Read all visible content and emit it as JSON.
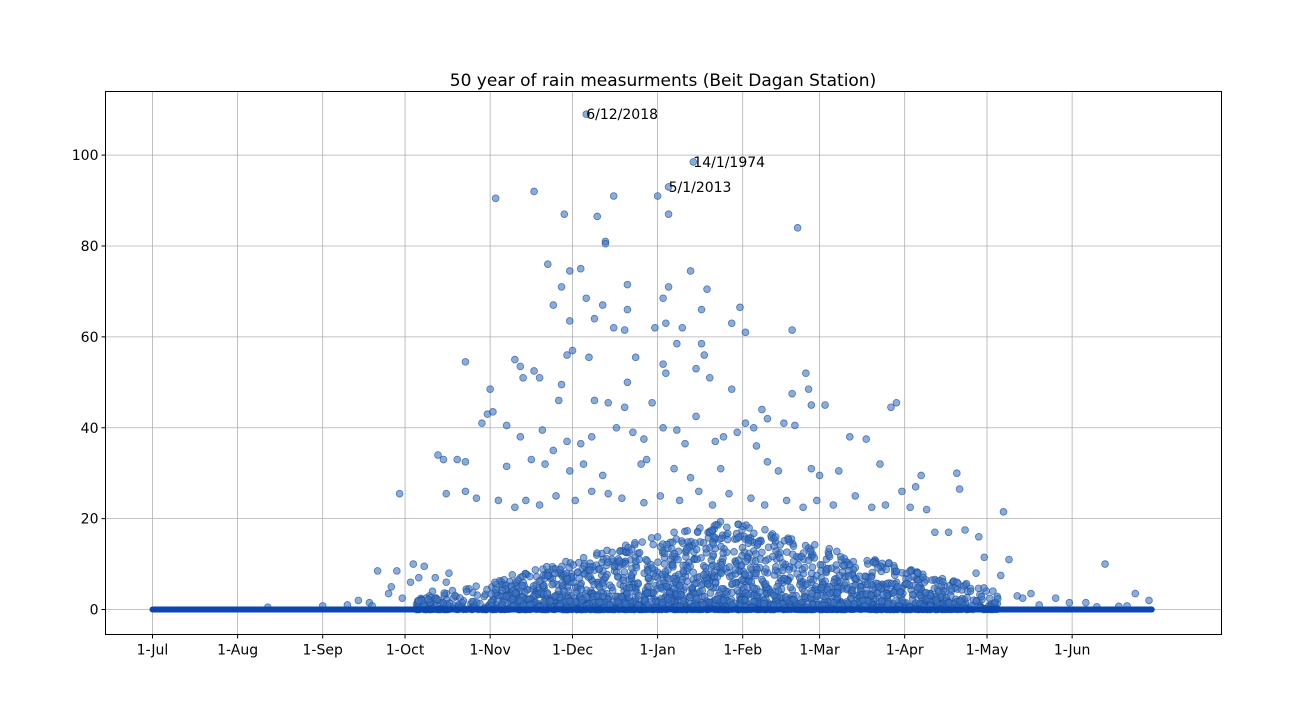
{
  "chart_data": {
    "type": "scatter",
    "title": "50 year of rain measurments (Beit Dagan Station)",
    "xlabel": "",
    "ylabel": "",
    "x_axis_kind": "day of season (Jul–Jun)",
    "x_tick_labels": [
      "1-Jul",
      "1-Aug",
      "1-Sep",
      "1-Oct",
      "1-Nov",
      "1-Dec",
      "1-Jan",
      "1-Feb",
      "1-Mar",
      "1-Apr",
      "1-May",
      "1-Jun"
    ],
    "y_ticks": [
      0,
      20,
      40,
      60,
      80,
      100
    ],
    "ylim": [
      -5.5,
      114
    ],
    "grid": true,
    "marker_color": "#3a75c4",
    "zero_line_color": "#0b46b0",
    "zero_rain_days": {
      "from": "1-Jul",
      "to": "30-Jun",
      "value": 0
    },
    "annotations": [
      {
        "text": "6/12/2018",
        "date": "6-Dec",
        "value": 109
      },
      {
        "text": "14/1/1974",
        "date": "14-Jan",
        "value": 98.5
      },
      {
        "text": "5/1/2013",
        "date": "5-Jan",
        "value": 93
      }
    ],
    "points": [
      [
        "6-Dec",
        109
      ],
      [
        "14-Jan",
        98.5
      ],
      [
        "5-Jan",
        93
      ],
      [
        "3-Nov",
        90.5
      ],
      [
        "17-Nov",
        92
      ],
      [
        "16-Dec",
        91
      ],
      [
        "1-Jan",
        91
      ],
      [
        "28-Nov",
        87
      ],
      [
        "10-Dec",
        86.5
      ],
      [
        "5-Jan",
        87
      ],
      [
        "21-Feb",
        84
      ],
      [
        "13-Dec",
        81
      ],
      [
        "13-Dec",
        80.5
      ],
      [
        "22-Nov",
        76
      ],
      [
        "4-Dec",
        75
      ],
      [
        "30-Nov",
        74.5
      ],
      [
        "13-Jan",
        74.5
      ],
      [
        "27-Nov",
        71
      ],
      [
        "21-Dec",
        71.5
      ],
      [
        "5-Jan",
        71
      ],
      [
        "19-Jan",
        70.5
      ],
      [
        "3-Jan",
        68.5
      ],
      [
        "6-Dec",
        68.5
      ],
      [
        "24-Nov",
        67
      ],
      [
        "12-Dec",
        67
      ],
      [
        "31-Jan",
        66.5
      ],
      [
        "21-Dec",
        66
      ],
      [
        "9-Dec",
        64
      ],
      [
        "30-Nov",
        63.5
      ],
      [
        "4-Jan",
        63
      ],
      [
        "28-Jan",
        63
      ],
      [
        "16-Dec",
        62
      ],
      [
        "31-Dec",
        62
      ],
      [
        "20-Dec",
        61.5
      ],
      [
        "2-Feb",
        61
      ],
      [
        "19-Feb",
        61.5
      ],
      [
        "17-Jan",
        66
      ],
      [
        "10-Jan",
        62
      ],
      [
        "1-Dec",
        57
      ],
      [
        "7-Dec",
        55.5
      ],
      [
        "24-Dec",
        55.5
      ],
      [
        "3-Jan",
        54
      ],
      [
        "17-Jan",
        58.5
      ],
      [
        "15-Jan",
        53
      ],
      [
        "18-Jan",
        56
      ],
      [
        "4-Jan",
        52
      ],
      [
        "8-Jan",
        58.5
      ],
      [
        "29-Nov",
        56
      ],
      [
        "10-Nov",
        55
      ],
      [
        "23-Oct",
        54.5
      ],
      [
        "12-Nov",
        53.5
      ],
      [
        "19-Nov",
        51
      ],
      [
        "17-Nov",
        52.5
      ],
      [
        "21-Dec",
        50
      ],
      [
        "27-Nov",
        49.5
      ],
      [
        "28-Jan",
        48.5
      ],
      [
        "20-Jan",
        51
      ],
      [
        "13-Nov",
        51
      ],
      [
        "8-Feb",
        44
      ],
      [
        "24-Feb",
        52
      ],
      [
        "26-Feb",
        45
      ],
      [
        "3-Mar",
        45
      ],
      [
        "25-Feb",
        48.5
      ],
      [
        "19-Feb",
        47.5
      ],
      [
        "1-Nov",
        48.5
      ],
      [
        "26-Nov",
        46
      ],
      [
        "9-Dec",
        46
      ],
      [
        "14-Dec",
        45.5
      ],
      [
        "20-Dec",
        44.5
      ],
      [
        "30-Dec",
        45.5
      ],
      [
        "15-Jan",
        42.5
      ],
      [
        "25-Jan",
        38
      ],
      [
        "30-Jan",
        39
      ],
      [
        "2-Feb",
        41
      ],
      [
        "5-Feb",
        40
      ],
      [
        "10-Feb",
        42
      ],
      [
        "16-Feb",
        41
      ],
      [
        "29-Mar",
        45.5
      ],
      [
        "27-Mar",
        44.5
      ],
      [
        "31-Oct",
        43
      ],
      [
        "29-Oct",
        41
      ],
      [
        "2-Nov",
        43.5
      ],
      [
        "7-Nov",
        40.5
      ],
      [
        "12-Nov",
        38
      ],
      [
        "20-Nov",
        39.5
      ],
      [
        "24-Nov",
        35
      ],
      [
        "29-Nov",
        37
      ],
      [
        "4-Dec",
        36.5
      ],
      [
        "8-Dec",
        38
      ],
      [
        "17-Dec",
        40
      ],
      [
        "23-Dec",
        39
      ],
      [
        "27-Dec",
        37.5
      ],
      [
        "3-Jan",
        40
      ],
      [
        "8-Jan",
        39.5
      ],
      [
        "11-Jan",
        36.5
      ],
      [
        "22-Jan",
        37
      ],
      [
        "6-Feb",
        36
      ],
      [
        "12-Mar",
        38
      ],
      [
        "18-Mar",
        37.5
      ],
      [
        "20-Feb",
        40.5
      ],
      [
        "13-Oct",
        34
      ],
      [
        "15-Oct",
        33
      ],
      [
        "20-Oct",
        33
      ],
      [
        "23-Oct",
        32.5
      ],
      [
        "7-Nov",
        31.5
      ],
      [
        "16-Nov",
        33
      ],
      [
        "21-Nov",
        32
      ],
      [
        "30-Nov",
        30.5
      ],
      [
        "5-Dec",
        32
      ],
      [
        "12-Dec",
        29.5
      ],
      [
        "26-Dec",
        32
      ],
      [
        "28-Dec",
        33
      ],
      [
        "7-Jan",
        31
      ],
      [
        "13-Jan",
        29
      ],
      [
        "24-Jan",
        31
      ],
      [
        "10-Feb",
        32.5
      ],
      [
        "14-Feb",
        30.5
      ],
      [
        "26-Feb",
        31
      ],
      [
        "1-Mar",
        29.5
      ],
      [
        "8-Mar",
        30.5
      ],
      [
        "23-Mar",
        32
      ],
      [
        "31-Mar",
        26
      ],
      [
        "5-Apr",
        27
      ],
      [
        "7-Apr",
        29.5
      ],
      [
        "20-Apr",
        30
      ],
      [
        "21-Apr",
        26.5
      ],
      [
        "29-Sep",
        25.5
      ],
      [
        "16-Oct",
        25.5
      ],
      [
        "23-Oct",
        26
      ],
      [
        "27-Oct",
        24.5
      ],
      [
        "4-Nov",
        24
      ],
      [
        "10-Nov",
        22.5
      ],
      [
        "14-Nov",
        24
      ],
      [
        "19-Nov",
        23
      ],
      [
        "25-Nov",
        25
      ],
      [
        "2-Dec",
        24
      ],
      [
        "8-Dec",
        26
      ],
      [
        "14-Dec",
        25.5
      ],
      [
        "19-Dec",
        24.5
      ],
      [
        "27-Dec",
        23.5
      ],
      [
        "2-Jan",
        25
      ],
      [
        "9-Jan",
        24
      ],
      [
        "16-Jan",
        26
      ],
      [
        "21-Jan",
        23
      ],
      [
        "27-Jan",
        25.5
      ],
      [
        "4-Feb",
        24.5
      ],
      [
        "9-Feb",
        23
      ],
      [
        "17-Feb",
        24
      ],
      [
        "23-Feb",
        22.5
      ],
      [
        "28-Feb",
        24
      ],
      [
        "6-Mar",
        23
      ],
      [
        "14-Mar",
        25
      ],
      [
        "20-Mar",
        22.5
      ],
      [
        "25-Mar",
        23
      ],
      [
        "3-Apr",
        22.5
      ],
      [
        "9-Apr",
        22
      ],
      [
        "12-Apr",
        17
      ],
      [
        "23-Apr",
        17.5
      ],
      [
        "7-May",
        21.5
      ],
      [
        "28-Apr",
        16
      ],
      [
        "17-Apr",
        17
      ],
      [
        "30-Apr",
        11.5
      ],
      [
        "9-May",
        11
      ],
      [
        "13-Jun",
        10
      ],
      [
        "27-Apr",
        8
      ],
      [
        "6-May",
        7.5
      ],
      [
        "24-Jun",
        3.5
      ],
      [
        "12-May",
        3
      ],
      [
        "21-Sep",
        8.5
      ],
      [
        "4-Oct",
        10
      ],
      [
        "8-Oct",
        9.5
      ],
      [
        "12-Oct",
        7
      ],
      [
        "17-Oct",
        8
      ],
      [
        "6-Oct",
        7
      ],
      [
        "28-Sep",
        8.5
      ],
      [
        "26-Sep",
        5
      ],
      [
        "3-Oct",
        6
      ],
      [
        "11-Oct",
        4
      ],
      [
        "16-Oct",
        6
      ],
      [
        "25-Sep",
        3.5
      ],
      [
        "30-Sep",
        2.5
      ],
      [
        "18-Sep",
        1.5
      ],
      [
        "14-Sep",
        2
      ],
      [
        "10-Sep",
        1
      ],
      [
        "12-Aug",
        0.5
      ],
      [
        "1-Sep",
        0.8
      ],
      [
        "19-Sep",
        0.8
      ],
      [
        "21-Jun",
        0.8
      ],
      [
        "18-Jun",
        0.7
      ],
      [
        "10-Jun",
        0.6
      ],
      [
        "6-Jun",
        1.5
      ],
      [
        "31-May",
        1.5
      ],
      [
        "26-May",
        2.5
      ],
      [
        "20-May",
        1
      ],
      [
        "17-May",
        3.5
      ],
      [
        "14-May",
        2.5
      ],
      [
        "29-Jun",
        2
      ]
    ],
    "dense_cluster": {
      "from": "5-Oct",
      "to": "5-May",
      "peak": "25-Jan",
      "max_value_scale": 20,
      "count": 2400
    }
  }
}
